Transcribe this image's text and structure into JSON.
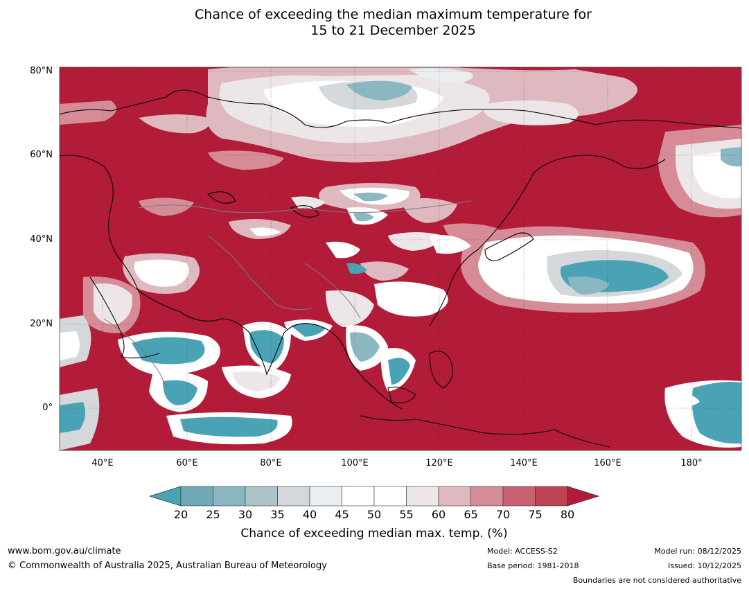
{
  "title": {
    "line1": "Chance of exceeding the median maximum temperature for",
    "line2": "15 to 21 December 2025"
  },
  "axes": {
    "lat_labels": [
      "80°N",
      "60°N",
      "40°N",
      "20°N",
      "0°"
    ],
    "lon_labels": [
      "40°E",
      "60°E",
      "80°E",
      "100°E",
      "120°E",
      "140°E",
      "160°E",
      "180°"
    ]
  },
  "legend": {
    "title": "Chance of exceeding median max. temp. (%)",
    "ticks": [
      "20",
      "25",
      "30",
      "35",
      "40",
      "45",
      "50",
      "55",
      "60",
      "65",
      "70",
      "75",
      "80"
    ],
    "colors": {
      "below_20": "#4aa3b5",
      "20_25": "#6ea9b5",
      "25_30": "#8ab7c2",
      "30_35": "#abc3c9",
      "35_40": "#d4d8da",
      "40_45": "#e9eef0",
      "45_50": "#ffffff",
      "50_55": "#ffffff",
      "55_60": "#ece6e8",
      "60_65": "#deb9bf",
      "65_70": "#d58c96",
      "70_75": "#c96270",
      "75_80": "#bd4452",
      "above_80": "#b21c38"
    }
  },
  "footer": {
    "website": "www.bom.gov.au/climate",
    "copyright": "© Commonwealth of Australia 2025, Australian Bureau of Meteorology",
    "model": "Model: ACCESS-S2",
    "base_period": "Base period: 1981-2018",
    "model_run": "Model run: 08/12/2025",
    "issued": "Issued: 10/12/2025",
    "boundaries": "Boundaries are not considered authoritative"
  }
}
